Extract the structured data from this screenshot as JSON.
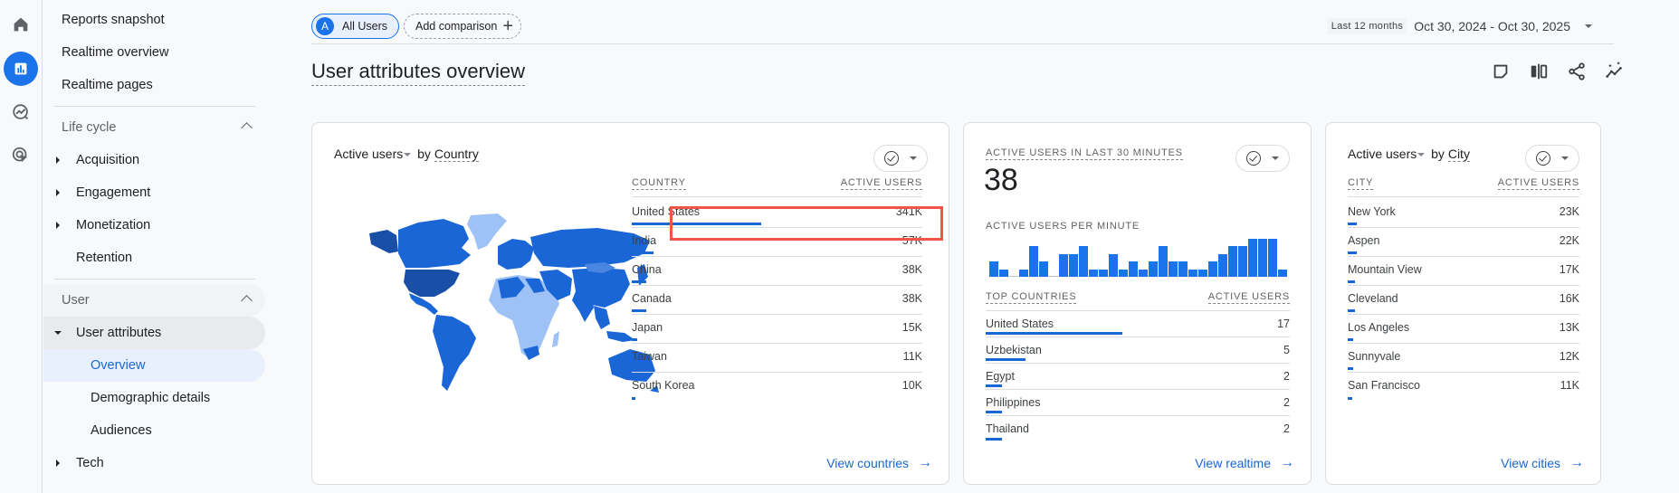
{
  "rail": {
    "items": [
      {
        "name": "home-icon",
        "label": "Home"
      },
      {
        "name": "reports-icon",
        "label": "Reports",
        "active": true
      },
      {
        "name": "explore-icon",
        "label": "Explore"
      },
      {
        "name": "advertising-icon",
        "label": "Advertising"
      }
    ]
  },
  "sidebar": {
    "top_items": [
      "Reports snapshot",
      "Realtime overview",
      "Realtime pages"
    ],
    "lifecycle": {
      "label": "Life cycle",
      "items": [
        "Acquisition",
        "Engagement",
        "Monetization",
        "Retention"
      ]
    },
    "user": {
      "label": "User",
      "group": "User attributes",
      "sub_items": [
        "Overview",
        "Demographic details",
        "Audiences"
      ],
      "tech": "Tech"
    }
  },
  "topbar": {
    "segment_avatar": "A",
    "segment_label": "All Users",
    "add_comparison": "Add comparison",
    "add_icon": "+",
    "date_preset": "Last 12 months",
    "date_range": "Oct 30, 2024 - Oct 30, 2025"
  },
  "page": {
    "title": "User attributes overview",
    "actions": [
      "customize-report-icon",
      "compare-icon",
      "share-icon",
      "insights-icon"
    ]
  },
  "country_card": {
    "metric": "Active users",
    "by": "by",
    "dimension": "Country",
    "col_dim": "COUNTRY",
    "col_metric": "ACTIVE USERS",
    "rows": [
      {
        "name": "United States",
        "value": "341K",
        "bar": 100
      },
      {
        "name": "India",
        "value": "57K",
        "bar": 17
      },
      {
        "name": "China",
        "value": "38K",
        "bar": 11
      },
      {
        "name": "Canada",
        "value": "38K",
        "bar": 11
      },
      {
        "name": "Japan",
        "value": "15K",
        "bar": 4.5
      },
      {
        "name": "Taiwan",
        "value": "11K",
        "bar": 3.2
      },
      {
        "name": "South Korea",
        "value": "10K",
        "bar": 3
      }
    ],
    "link": "View countries",
    "link_icon": "→"
  },
  "realtime_card": {
    "label": "ACTIVE USERS IN LAST 30 MINUTES",
    "value": "38",
    "per_minute_label": "ACTIVE USERS PER MINUTE",
    "per_minute": [
      2,
      1,
      0,
      1,
      4,
      2,
      0,
      3,
      3,
      4,
      1,
      1,
      3,
      1,
      2,
      1,
      2,
      4,
      2,
      2,
      1,
      1,
      2,
      3,
      4,
      4,
      5,
      5,
      5,
      1
    ],
    "col_dim": "TOP COUNTRIES",
    "col_metric": "ACTIVE USERS",
    "rows": [
      {
        "name": "United States",
        "value": "17",
        "bar": 100
      },
      {
        "name": "Uzbekistan",
        "value": "5",
        "bar": 29
      },
      {
        "name": "Egypt",
        "value": "2",
        "bar": 12
      },
      {
        "name": "Philippines",
        "value": "2",
        "bar": 12
      },
      {
        "name": "Thailand",
        "value": "2",
        "bar": 12
      }
    ],
    "link": "View realtime",
    "link_icon": "→"
  },
  "city_card": {
    "metric": "Active users",
    "by": "by",
    "dimension": "City",
    "col_dim": "CITY",
    "col_metric": "ACTIVE USERS",
    "rows": [
      {
        "name": "New York",
        "value": "23K",
        "bar": 4
      },
      {
        "name": "Aspen",
        "value": "22K",
        "bar": 4
      },
      {
        "name": "Mountain View",
        "value": "17K",
        "bar": 3.2
      },
      {
        "name": "Cleveland",
        "value": "16K",
        "bar": 3
      },
      {
        "name": "Los Angeles",
        "value": "13K",
        "bar": 2.5
      },
      {
        "name": "Sunnyvale",
        "value": "12K",
        "bar": 2.3
      },
      {
        "name": "San Francisco",
        "value": "11K",
        "bar": 2
      }
    ],
    "link": "View cities",
    "link_icon": "→"
  },
  "colors": {
    "accent": "#1a73e8",
    "bar": "#1967d2",
    "highlight": "#f05545",
    "map_dark": "#1a4fa8",
    "map_mid": "#1a66d6",
    "map_light": "#9ec2f5"
  }
}
